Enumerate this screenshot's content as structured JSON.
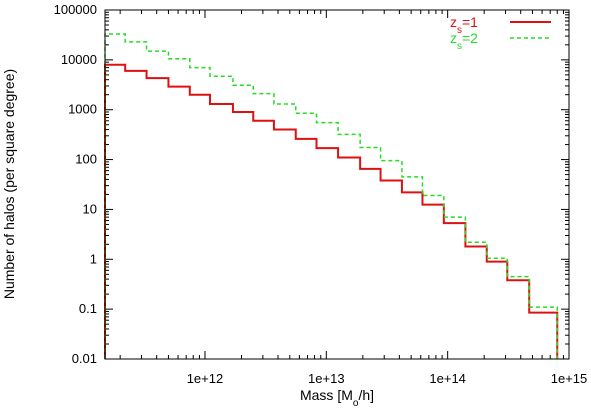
{
  "chart_data": {
    "type": "line",
    "step": true,
    "xlabel": "Mass [M",
    "xlabel_sub": "o",
    "xlabel_tail": "/h]",
    "ylabel": "Number of halos (per square degree)",
    "xscale": "log",
    "yscale": "log",
    "xlim": [
      150000000000.0,
      1000000000000000.0
    ],
    "ylim": [
      0.01,
      100000
    ],
    "x_tick_labels": [
      {
        "value": 1000000000000.0,
        "label": "1e+12"
      },
      {
        "value": 10000000000000.0,
        "label": "1e+13"
      },
      {
        "value": 100000000000000.0,
        "label": "1e+14"
      },
      {
        "value": 1000000000000000.0,
        "label": "1e+15"
      }
    ],
    "y_tick_labels": [
      {
        "value": 0.01,
        "label": "0.01"
      },
      {
        "value": 0.1,
        "label": "0.1"
      },
      {
        "value": 1,
        "label": "1"
      },
      {
        "value": 10,
        "label": "10"
      },
      {
        "value": 100,
        "label": "100"
      },
      {
        "value": 1000,
        "label": "1000"
      },
      {
        "value": 10000,
        "label": "10000"
      },
      {
        "value": 100000,
        "label": "100000"
      }
    ],
    "legend_position": "top-right",
    "bin_edges": [
      150000000000.0,
      220000000000.0,
      330000000000.0,
      500000000000.0,
      750000000000.0,
      1100000000000.0,
      1700000000000.0,
      2500000000000.0,
      3700000000000.0,
      5600000000000.0,
      8300000000000.0,
      12500000000000.0,
      19000000000000.0,
      28000000000000.0,
      42000000000000.0,
      62000000000000.0,
      93000000000000.0,
      140000000000000.0,
      210000000000000.0,
      310000000000000.0,
      470000000000000.0,
      800000000000000.0
    ],
    "series": [
      {
        "name": "z",
        "name_sub": "s",
        "name_tail": "=1",
        "color": "#dd1111",
        "dash": "solid",
        "values": [
          8000,
          6000,
          4300,
          2900,
          2000,
          1300,
          900,
          600,
          400,
          260,
          170,
          110,
          65,
          38,
          22,
          12.5,
          5.3,
          1.8,
          0.9,
          0.38,
          0.085
        ]
      },
      {
        "name": "z",
        "name_sub": "s",
        "name_tail": "=2",
        "color": "#22dd22",
        "dash": "dashed",
        "values": [
          33000,
          23000,
          15000,
          10500,
          7000,
          4700,
          3100,
          2100,
          1300,
          850,
          550,
          320,
          175,
          95,
          45,
          19,
          7,
          2.2,
          1.05,
          0.45,
          0.11
        ]
      }
    ]
  }
}
